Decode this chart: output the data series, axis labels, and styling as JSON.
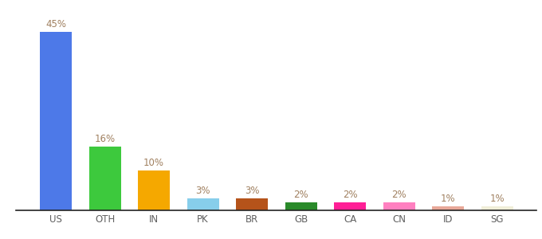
{
  "categories": [
    "US",
    "OTH",
    "IN",
    "PK",
    "BR",
    "GB",
    "CA",
    "CN",
    "ID",
    "SG"
  ],
  "values": [
    45,
    16,
    10,
    3,
    3,
    2,
    2,
    2,
    1,
    1
  ],
  "bar_colors": [
    "#4d79e8",
    "#3dc93d",
    "#f5a800",
    "#87ceeb",
    "#b5531a",
    "#2a8a2a",
    "#ff1f96",
    "#ff80c0",
    "#e8a898",
    "#f0eed8"
  ],
  "label_color": "#a08060",
  "tick_color": "#606060",
  "label_fontsize": 8.5,
  "tick_fontsize": 8.5,
  "ylim": [
    0,
    50
  ],
  "bar_width": 0.65,
  "background_color": "#ffffff"
}
